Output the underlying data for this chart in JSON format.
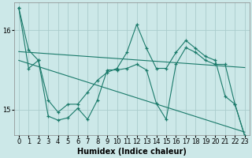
{
  "xlabel": "Humidex (Indice chaleur)",
  "bg_color": "#cce8e8",
  "line_color": "#1a7a6a",
  "grid_color": "#aacccc",
  "xlim": [
    -0.5,
    23.5
  ],
  "ylim": [
    14.68,
    16.35
  ],
  "yticks": [
    15,
    16
  ],
  "xticks": [
    0,
    1,
    2,
    3,
    4,
    5,
    6,
    7,
    8,
    9,
    10,
    11,
    12,
    13,
    14,
    15,
    16,
    17,
    18,
    19,
    20,
    21,
    22,
    23
  ],
  "series1_x": [
    0,
    1,
    2,
    3,
    4,
    5,
    6,
    7,
    8,
    9,
    10,
    11,
    12,
    13,
    14,
    15,
    16,
    17,
    18,
    19,
    20,
    21,
    22,
    23
  ],
  "series1_y": [
    16.28,
    15.75,
    15.62,
    14.92,
    14.87,
    14.9,
    15.02,
    14.88,
    15.12,
    15.5,
    15.5,
    15.52,
    15.57,
    15.5,
    15.08,
    14.88,
    15.57,
    15.78,
    15.72,
    15.62,
    15.57,
    15.57,
    15.07,
    14.67
  ],
  "series2_x": [
    0,
    1,
    2,
    3,
    4,
    5,
    6,
    7,
    8,
    9,
    10,
    11,
    12,
    13,
    14,
    15,
    16,
    17,
    18,
    19,
    20,
    21,
    22,
    23
  ],
  "series2_y": [
    16.28,
    15.52,
    15.62,
    15.12,
    14.97,
    15.07,
    15.07,
    15.22,
    15.37,
    15.47,
    15.52,
    15.72,
    16.07,
    15.77,
    15.52,
    15.52,
    15.72,
    15.87,
    15.77,
    15.67,
    15.62,
    15.17,
    15.07,
    14.67
  ],
  "trend1_x": [
    0,
    23
  ],
  "trend1_y": [
    15.73,
    15.53
  ],
  "trend2_x": [
    0,
    23
  ],
  "trend2_y": [
    15.62,
    14.72
  ],
  "font_size": 7,
  "xlabel_fontsize": 7,
  "tick_fontsize": 6
}
